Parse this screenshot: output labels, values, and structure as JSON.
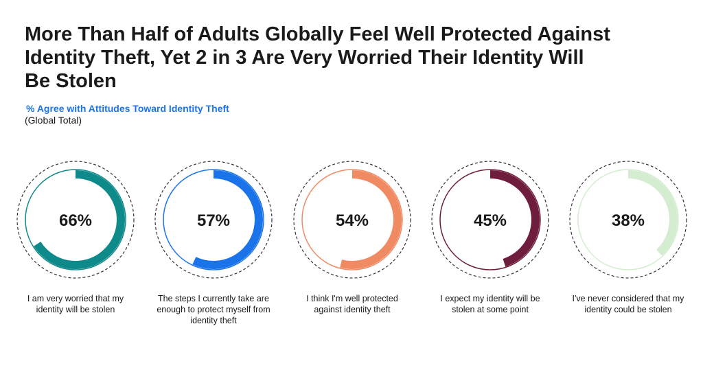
{
  "chart_data": {
    "type": "donut",
    "title": "More Than Half of Adults Globally Feel Well Protected Against\nIdentity Theft, Yet 2 in 3 Are Very Worried Their Identity Will\nBe Stolen",
    "subtitle": "% Agree with Attitudes Toward Identity Theft",
    "note": "(Global Total)",
    "unit": "%",
    "items": [
      {
        "label": "I am very worried that my identity will be stolen",
        "value": 66,
        "value_label": "66%",
        "color": "#0f8a8a"
      },
      {
        "label": "The steps I currently take are enough to protect myself from identity theft",
        "value": 57,
        "value_label": "57%",
        "color": "#1a73e8"
      },
      {
        "label": "I think I'm well protected against identity theft",
        "value": 54,
        "value_label": "54%",
        "color": "#f08a63"
      },
      {
        "label": "I expect my identity will be stolen at some point",
        "value": 45,
        "value_label": "45%",
        "color": "#6e1e3c"
      },
      {
        "label": "I've never considered that my identity could be stolen",
        "value": 38,
        "value_label": "38%",
        "color": "#d4ecd0"
      }
    ]
  }
}
